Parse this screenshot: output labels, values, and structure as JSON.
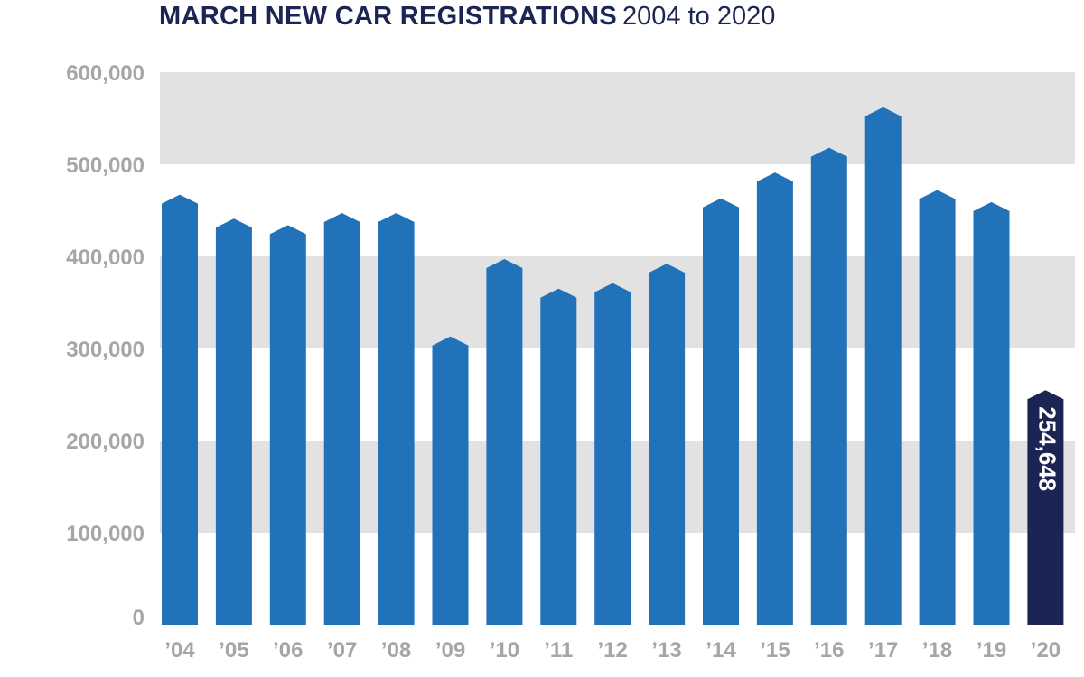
{
  "chart_data": {
    "type": "bar",
    "title": "MARCH NEW CAR REGISTRATIONS",
    "subtitle": "2004 to 2020",
    "xlabel": "",
    "ylabel": "",
    "categories": [
      "’04",
      "’05",
      "’06",
      "’07",
      "’08",
      "’09",
      "’10",
      "’11",
      "’12",
      "’13",
      "’14",
      "’15",
      "’16",
      "’17",
      "’18",
      "’19",
      "’20"
    ],
    "values": [
      467000,
      441000,
      434000,
      447000,
      447000,
      313000,
      397000,
      365000,
      371000,
      392000,
      463000,
      491000,
      518000,
      562000,
      472000,
      459000,
      254648
    ],
    "ylim": [
      0,
      600000
    ],
    "yticks": [
      0,
      100000,
      200000,
      300000,
      400000,
      500000,
      600000
    ],
    "ytick_labels": [
      "0",
      "100,000",
      "200,000",
      "300,000",
      "400,000",
      "500,000",
      "600,000"
    ],
    "data_labels": [
      {
        "category": "’20",
        "text": "254,648"
      }
    ],
    "highlight_category": "’20",
    "grid": "alternating horizontal bands",
    "legend": "none",
    "colors": {
      "bar": "#2272b9",
      "highlight_bar": "#1b2452",
      "band": "#e3e2e3",
      "tick_text": "#a6a6a6",
      "title": "#1b2452",
      "data_label": "#ffffff"
    }
  }
}
